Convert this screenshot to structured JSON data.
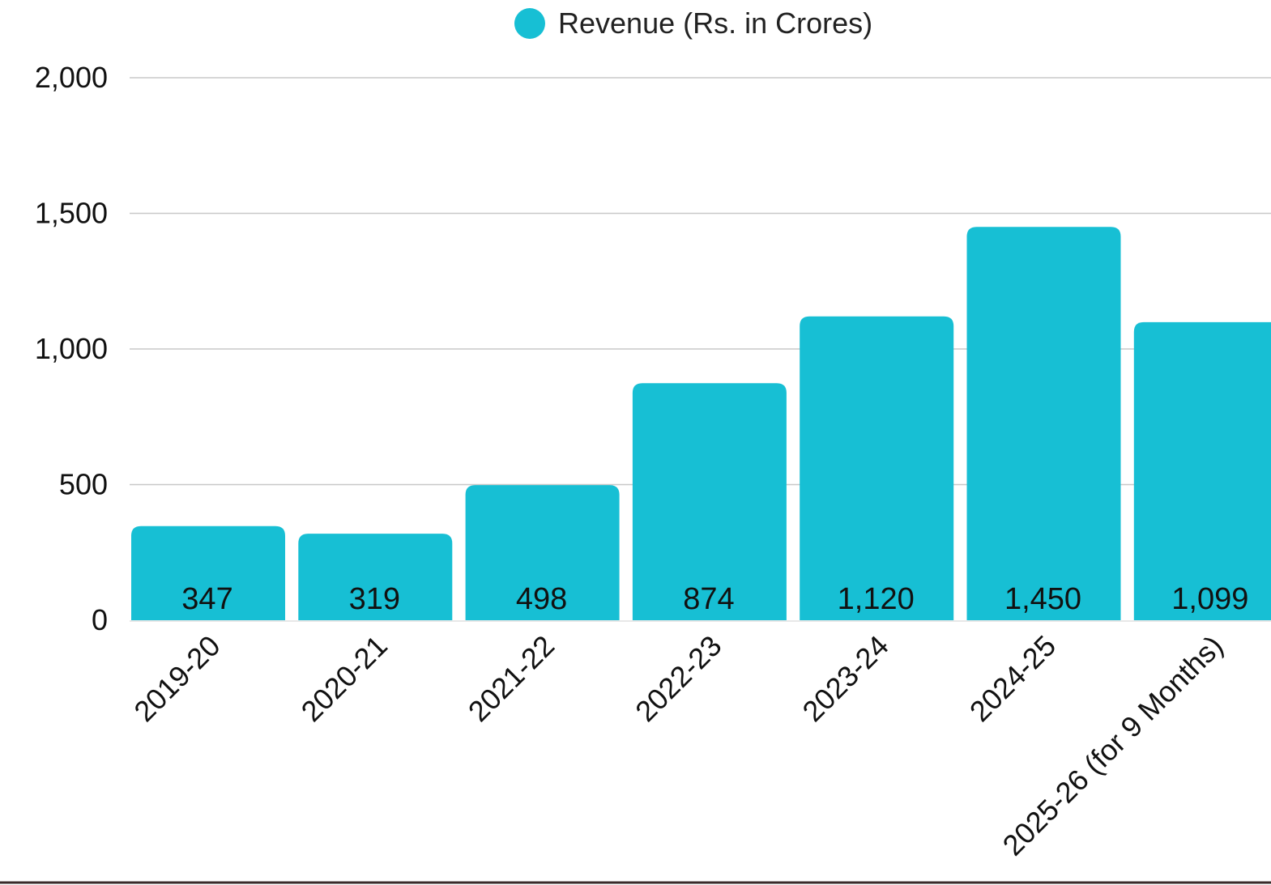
{
  "chart_data": {
    "type": "bar",
    "categories": [
      "2019-20",
      "2020-21",
      "2021-22",
      "2022-23",
      "2023-24",
      "2024-25",
      "2025-26 (for 9 Months)"
    ],
    "series": [
      {
        "name": "Revenue (Rs. in Crores)",
        "values": [
          347,
          319,
          498,
          874,
          1120,
          1450,
          1099
        ],
        "value_labels": [
          "347",
          "319",
          "498",
          "874",
          "1,120",
          "1,450",
          "1,099"
        ],
        "color": "#17BFD4"
      }
    ],
    "y_ticks": [
      0,
      500,
      1000,
      1500,
      2000
    ],
    "y_tick_labels": [
      "0",
      "500",
      "1,000",
      "1,500",
      "2,000"
    ],
    "ylim": [
      0,
      2000
    ],
    "grid": true,
    "legend_position": "top-center",
    "title": "",
    "xlabel": "",
    "ylabel": ""
  }
}
